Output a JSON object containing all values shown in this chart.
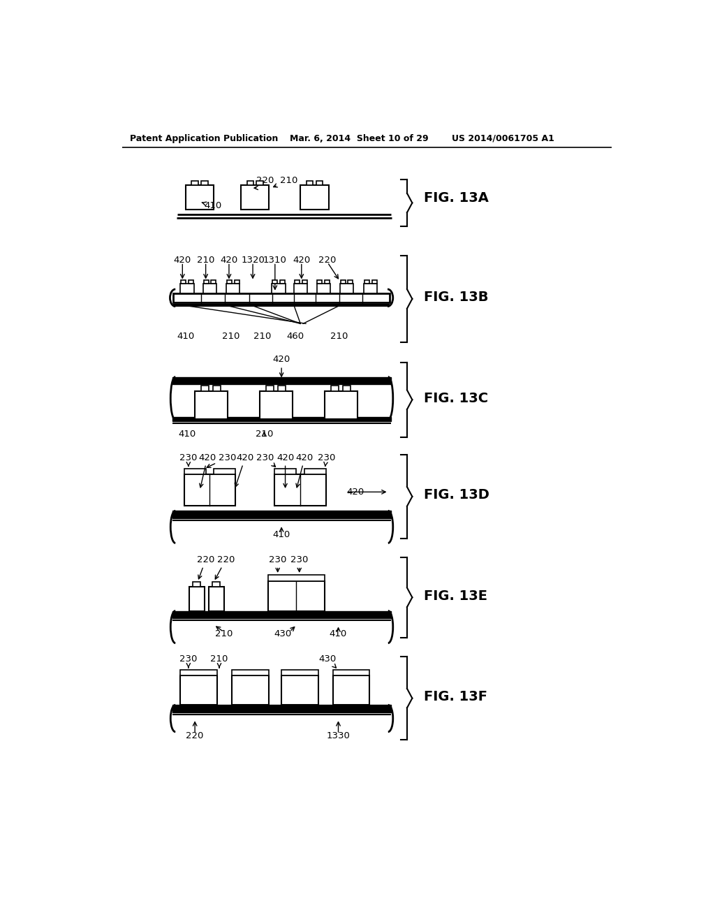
{
  "title_left": "Patent Application Publication",
  "title_mid": "Mar. 6, 2014  Sheet 10 of 29",
  "title_right": "US 2014/0061705 A1",
  "background": "#ffffff"
}
